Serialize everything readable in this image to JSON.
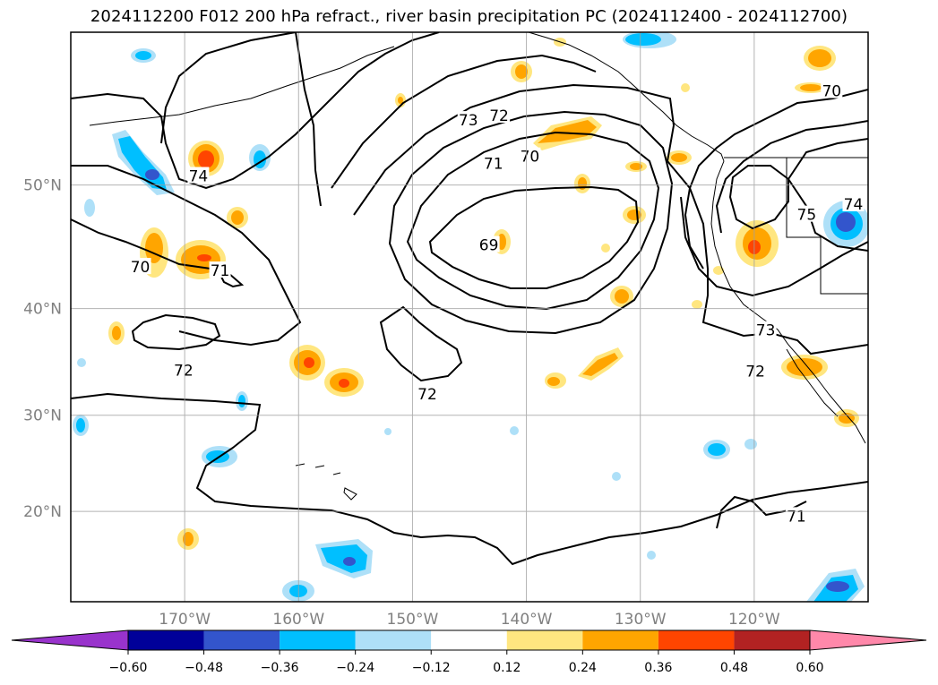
{
  "title": "2024112200 F012 200 hPa refract., river basin precipitation PC (2024112400 - 2024112700)",
  "chart_data": {
    "type": "contour-map",
    "title": "2024112200 F012 200 hPa refract., river basin precipitation PC (2024112400 - 2024112700)",
    "lat_ticks": [
      {
        "value": 50,
        "label": "50°N"
      },
      {
        "value": 40,
        "label": "40°N"
      },
      {
        "value": 30,
        "label": "30°N"
      },
      {
        "value": 20,
        "label": "20°N"
      }
    ],
    "lon_ticks": [
      {
        "value": -170,
        "label": "170°W"
      },
      {
        "value": -160,
        "label": "160°W"
      },
      {
        "value": -150,
        "label": "150°W"
      },
      {
        "value": -140,
        "label": "140°W"
      },
      {
        "value": -130,
        "label": "130°W"
      },
      {
        "value": -120,
        "label": "120°W"
      }
    ],
    "lon_range": [
      -180,
      -110
    ],
    "lat_range": [
      10,
      60
    ],
    "grid": true,
    "contour_labels": [
      {
        "text": "74",
        "lon": -168.8,
        "lat": 50.6
      },
      {
        "text": "73",
        "lon": -145.1,
        "lat": 54.5
      },
      {
        "text": "72",
        "lon": -142.4,
        "lat": 54.8
      },
      {
        "text": "71",
        "lon": -142.9,
        "lat": 51.5
      },
      {
        "text": "70",
        "lon": -139.7,
        "lat": 52.0
      },
      {
        "text": "69",
        "lon": -143.3,
        "lat": 45.3
      },
      {
        "text": "71",
        "lon": -166.9,
        "lat": 43.2
      },
      {
        "text": "70",
        "lon": -173.9,
        "lat": 43.5
      },
      {
        "text": "72",
        "lon": -170.1,
        "lat": 34.3
      },
      {
        "text": "72",
        "lon": -148.7,
        "lat": 32.0
      },
      {
        "text": "70",
        "lon": -113.2,
        "lat": 56.4
      },
      {
        "text": "74",
        "lon": -111.3,
        "lat": 48.5
      },
      {
        "text": "75",
        "lon": -115.4,
        "lat": 47.7
      },
      {
        "text": "73",
        "lon": -119.0,
        "lat": 38.0
      },
      {
        "text": "72",
        "lon": -119.9,
        "lat": 34.2
      },
      {
        "text": "71",
        "lon": -116.3,
        "lat": 19.4
      }
    ],
    "colorbar": {
      "levels": [
        -0.6,
        -0.48,
        -0.36,
        -0.24,
        -0.12,
        0.12,
        0.24,
        0.36,
        0.48,
        0.6
      ],
      "labels": [
        "−0.60",
        "−0.48",
        "−0.36",
        "−0.24",
        "−0.12",
        "0.12",
        "0.24",
        "0.36",
        "0.48",
        "0.60"
      ],
      "colors": [
        "#9933cc",
        "#000099",
        "#3355cc",
        "#00bfff",
        "#aee0f8",
        "#ffffff",
        "#ffe680",
        "#ffa500",
        "#ff4500",
        "#b22222",
        "#ff88aa"
      ],
      "extend": "both"
    }
  }
}
